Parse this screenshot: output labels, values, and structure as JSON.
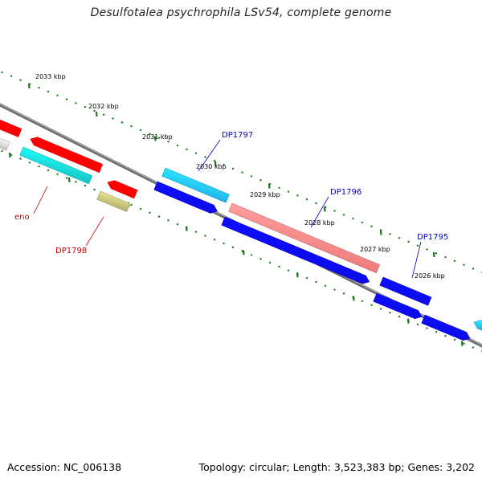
{
  "title": "Desulfotalea psychrophila LSv54, complete genome",
  "footer": {
    "accession": "Accession: NC_006138",
    "summary": "Topology: circular; Length: 3,523,383 bp; Genes: 3,202"
  },
  "colors": {
    "backbone": "#7a7a7a",
    "tick": "#1a7a1a",
    "red_gene": "#ff0000",
    "cyan_gene": "#17c8c8",
    "grey_gene": "#c8c8c8",
    "olive_gene": "#b8b470",
    "skyblue_gene": "#22b6ec",
    "blue_gene": "#0b0bea",
    "salmon_gene": "#ee7e7e",
    "label_blue": "#0000c8",
    "label_red": "#c80000"
  },
  "ticks": [
    {
      "label": "2033 kbp"
    },
    {
      "label": "2032 kbp"
    },
    {
      "label": "2031 kbp"
    },
    {
      "label": "2030 kbp"
    },
    {
      "label": "2029 kbp"
    },
    {
      "label": "2028 kbp"
    },
    {
      "label": "2027 kbp"
    },
    {
      "label": "2026 kbp"
    }
  ],
  "gene_labels": [
    {
      "name": "DP1797",
      "color": "label_blue"
    },
    {
      "name": "DP1796",
      "color": "label_blue"
    },
    {
      "name": "DP1795",
      "color": "label_blue"
    },
    {
      "name": "eno",
      "color": "label_red"
    },
    {
      "name": "DP1798",
      "color": "label_red"
    }
  ]
}
